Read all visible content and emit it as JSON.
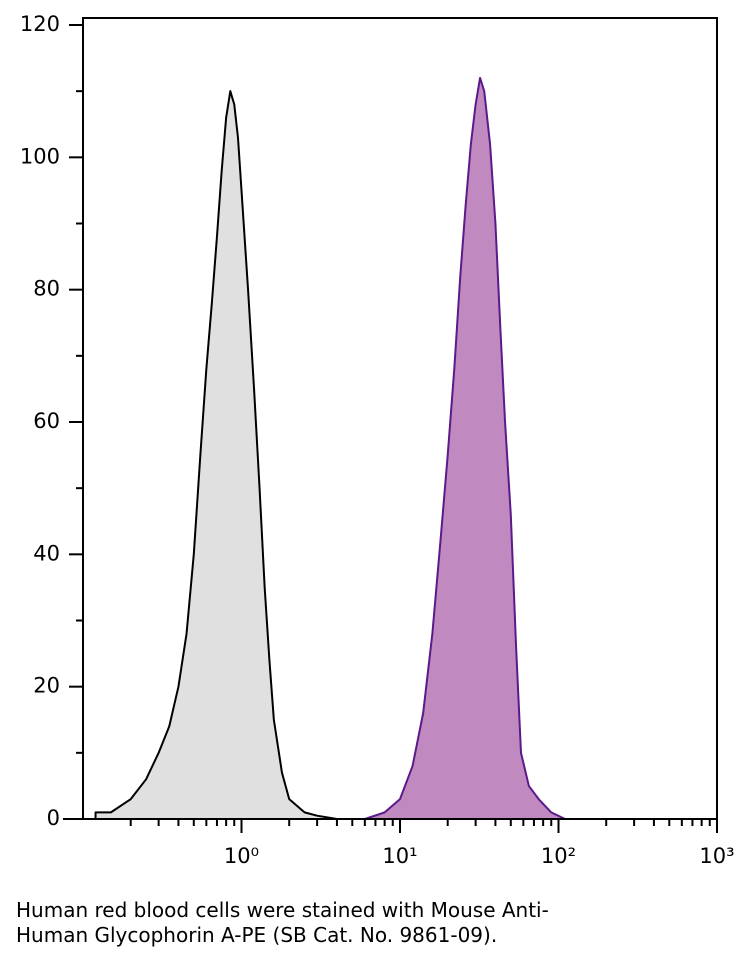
{
  "chart_data": {
    "type": "area",
    "xscale": "log",
    "xlim": [
      0.1,
      1000
    ],
    "ylim": [
      0,
      120
    ],
    "xticks": [
      {
        "value": 1,
        "label": "10⁰"
      },
      {
        "value": 10,
        "label": "10¹"
      },
      {
        "value": 100,
        "label": "10²"
      },
      {
        "value": 1000,
        "label": "10³"
      }
    ],
    "xminorticks": [
      0.2,
      0.3,
      0.4,
      0.5,
      0.6,
      0.7,
      0.8,
      0.9,
      2,
      3,
      4,
      5,
      6,
      7,
      8,
      9,
      20,
      30,
      40,
      50,
      60,
      70,
      80,
      90,
      200,
      300,
      400,
      500,
      600,
      700,
      800,
      900
    ],
    "yticks": [
      0,
      20,
      40,
      60,
      80,
      100,
      120
    ],
    "yminorticks": [
      10,
      30,
      50,
      70,
      90,
      110
    ],
    "series": [
      {
        "color": "#000000",
        "fill": "#e0e0e0",
        "x": [
          0.12,
          0.15,
          0.2,
          0.25,
          0.3,
          0.35,
          0.4,
          0.45,
          0.5,
          0.55,
          0.6,
          0.65,
          0.7,
          0.75,
          0.8,
          0.85,
          0.9,
          0.95,
          1.0,
          1.1,
          1.2,
          1.3,
          1.4,
          1.5,
          1.6,
          1.8,
          2,
          2.5,
          3,
          4
        ],
        "values": [
          1,
          1,
          3,
          6,
          10,
          14,
          20,
          28,
          40,
          55,
          68,
          78,
          88,
          98,
          106,
          110,
          108,
          103,
          95,
          80,
          65,
          50,
          35,
          24,
          15,
          7,
          3,
          1,
          0.5,
          0
        ]
      },
      {
        "color": "#5a1a8a",
        "fill": "#c08ac0",
        "x": [
          6,
          8,
          10,
          12,
          14,
          16,
          18,
          20,
          22,
          24,
          26,
          28,
          30,
          32,
          34,
          37,
          40,
          43,
          46,
          50,
          54,
          58,
          65,
          75,
          90,
          110
        ],
        "values": [
          0,
          1,
          3,
          8,
          16,
          28,
          42,
          55,
          68,
          82,
          93,
          102,
          108,
          112,
          110,
          102,
          90,
          74,
          60,
          46,
          26,
          10,
          5,
          3,
          1,
          0
        ]
      }
    ],
    "caption": [
      "Human red blood cells were stained with Mouse Anti-",
      "Human Glycophorin A-PE (SB Cat. No. 9861-09)."
    ]
  }
}
